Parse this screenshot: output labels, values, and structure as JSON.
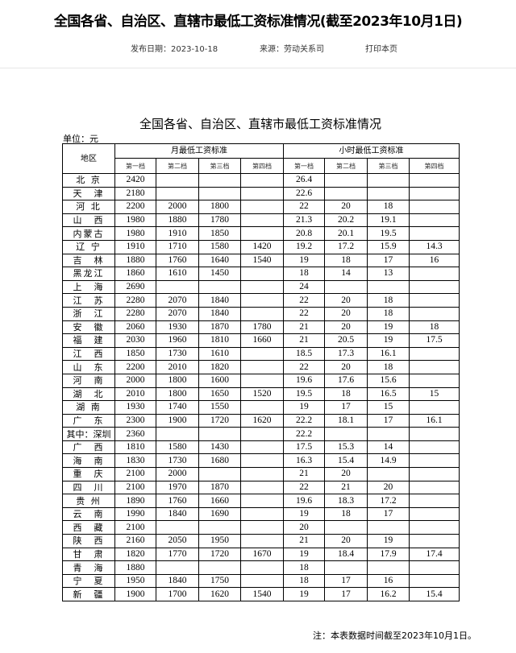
{
  "header": {
    "title": "全国各省、自治区、直辖市最低工资标准情况(截至2023年10月1日)",
    "publish_date": "发布日期：2023-10-18",
    "source": "来源：劳动关系司",
    "print_link": "打印本页"
  },
  "document": {
    "title": "全国各省、自治区、直辖市最低工资标准情况",
    "unit": "单位：元",
    "note": "注：本表数据时间截至2023年10月1日。"
  },
  "table": {
    "region_header": "地区",
    "monthly_header": "月最低工资标准",
    "hourly_header": "小时最低工资标准",
    "tiers": [
      "第一档",
      "第二档",
      "第三档",
      "第四档"
    ],
    "rows": [
      {
        "region": "北 京",
        "m": [
          "2420",
          "",
          "",
          ""
        ],
        "h": [
          "26.4",
          "",
          "",
          ""
        ]
      },
      {
        "region": "天　津",
        "m": [
          "2180",
          "",
          "",
          ""
        ],
        "h": [
          "22.6",
          "",
          "",
          ""
        ]
      },
      {
        "region": "河 北",
        "m": [
          "2200",
          "2000",
          "1800",
          ""
        ],
        "h": [
          "22",
          "20",
          "18",
          ""
        ]
      },
      {
        "region": "山　西",
        "m": [
          "1980",
          "1880",
          "1780",
          ""
        ],
        "h": [
          "21.3",
          "20.2",
          "19.1",
          ""
        ]
      },
      {
        "region": "内蒙古",
        "m": [
          "1980",
          "1910",
          "1850",
          ""
        ],
        "h": [
          "20.8",
          "20.1",
          "19.5",
          ""
        ]
      },
      {
        "region": "辽 宁",
        "m": [
          "1910",
          "1710",
          "1580",
          "1420"
        ],
        "h": [
          "19.2",
          "17.2",
          "15.9",
          "14.3"
        ]
      },
      {
        "region": "吉　林",
        "m": [
          "1880",
          "1760",
          "1640",
          "1540"
        ],
        "h": [
          "19",
          "18",
          "17",
          "16"
        ]
      },
      {
        "region": "黑龙江",
        "m": [
          "1860",
          "1610",
          "1450",
          ""
        ],
        "h": [
          "18",
          "14",
          "13",
          ""
        ]
      },
      {
        "region": "上　海",
        "m": [
          "2690",
          "",
          "",
          ""
        ],
        "h": [
          "24",
          "",
          "",
          ""
        ]
      },
      {
        "region": "江　苏",
        "m": [
          "2280",
          "2070",
          "1840",
          ""
        ],
        "h": [
          "22",
          "20",
          "18",
          ""
        ]
      },
      {
        "region": "浙　江",
        "m": [
          "2280",
          "2070",
          "1840",
          ""
        ],
        "h": [
          "22",
          "20",
          "18",
          ""
        ]
      },
      {
        "region": "安　徽",
        "m": [
          "2060",
          "1930",
          "1870",
          "1780"
        ],
        "h": [
          "21",
          "20",
          "19",
          "18"
        ]
      },
      {
        "region": "福　建",
        "m": [
          "2030",
          "1960",
          "1810",
          "1660"
        ],
        "h": [
          "21",
          "20.5",
          "19",
          "17.5"
        ]
      },
      {
        "region": "江　西",
        "m": [
          "1850",
          "1730",
          "1610",
          ""
        ],
        "h": [
          "18.5",
          "17.3",
          "16.1",
          ""
        ]
      },
      {
        "region": "山　东",
        "m": [
          "2200",
          "2010",
          "1820",
          ""
        ],
        "h": [
          "22",
          "20",
          "18",
          ""
        ]
      },
      {
        "region": "河　南",
        "m": [
          "2000",
          "1800",
          "1600",
          ""
        ],
        "h": [
          "19.6",
          "17.6",
          "15.6",
          ""
        ]
      },
      {
        "region": "湖　北",
        "m": [
          "2010",
          "1800",
          "1650",
          "1520"
        ],
        "h": [
          "19.5",
          "18",
          "16.5",
          "15"
        ]
      },
      {
        "region": "湖 南",
        "m": [
          "1930",
          "1740",
          "1550",
          ""
        ],
        "h": [
          "19",
          "17",
          "15",
          ""
        ]
      },
      {
        "region": "广　东",
        "m": [
          "2300",
          "1900",
          "1720",
          "1620"
        ],
        "h": [
          "22.2",
          "18.1",
          "17",
          "16.1"
        ]
      },
      {
        "region": "其中：深圳",
        "m": [
          "2360",
          "",
          "",
          ""
        ],
        "h": [
          "22.2",
          "",
          "",
          ""
        ]
      },
      {
        "region": "广　西",
        "m": [
          "1810",
          "1580",
          "1430",
          ""
        ],
        "h": [
          "17.5",
          "15.3",
          "14",
          ""
        ]
      },
      {
        "region": "海　南",
        "m": [
          "1830",
          "1730",
          "1680",
          ""
        ],
        "h": [
          "16.3",
          "15.4",
          "14.9",
          ""
        ]
      },
      {
        "region": "重　庆",
        "m": [
          "2100",
          "2000",
          "",
          ""
        ],
        "h": [
          "21",
          "20",
          "",
          ""
        ]
      },
      {
        "region": "四　川",
        "m": [
          "2100",
          "1970",
          "1870",
          ""
        ],
        "h": [
          "22",
          "21",
          "20",
          ""
        ]
      },
      {
        "region": "贵 州",
        "m": [
          "1890",
          "1760",
          "1660",
          ""
        ],
        "h": [
          "19.6",
          "18.3",
          "17.2",
          ""
        ]
      },
      {
        "region": "云　南",
        "m": [
          "1990",
          "1840",
          "1690",
          ""
        ],
        "h": [
          "19",
          "18",
          "17",
          ""
        ]
      },
      {
        "region": "西　藏",
        "m": [
          "2100",
          "",
          "",
          ""
        ],
        "h": [
          "20",
          "",
          "",
          ""
        ]
      },
      {
        "region": "陕　西",
        "m": [
          "2160",
          "2050",
          "1950",
          ""
        ],
        "h": [
          "21",
          "20",
          "19",
          ""
        ]
      },
      {
        "region": "甘　肃",
        "m": [
          "1820",
          "1770",
          "1720",
          "1670"
        ],
        "h": [
          "19",
          "18.4",
          "17.9",
          "17.4"
        ]
      },
      {
        "region": "青　海",
        "m": [
          "1880",
          "",
          "",
          ""
        ],
        "h": [
          "18",
          "",
          "",
          ""
        ]
      },
      {
        "region": "宁　夏",
        "m": [
          "1950",
          "1840",
          "1750",
          ""
        ],
        "h": [
          "18",
          "17",
          "16",
          ""
        ]
      },
      {
        "region": "新　疆",
        "m": [
          "1900",
          "1700",
          "1620",
          "1540"
        ],
        "h": [
          "19",
          "17",
          "16.2",
          "15.4"
        ]
      }
    ]
  }
}
